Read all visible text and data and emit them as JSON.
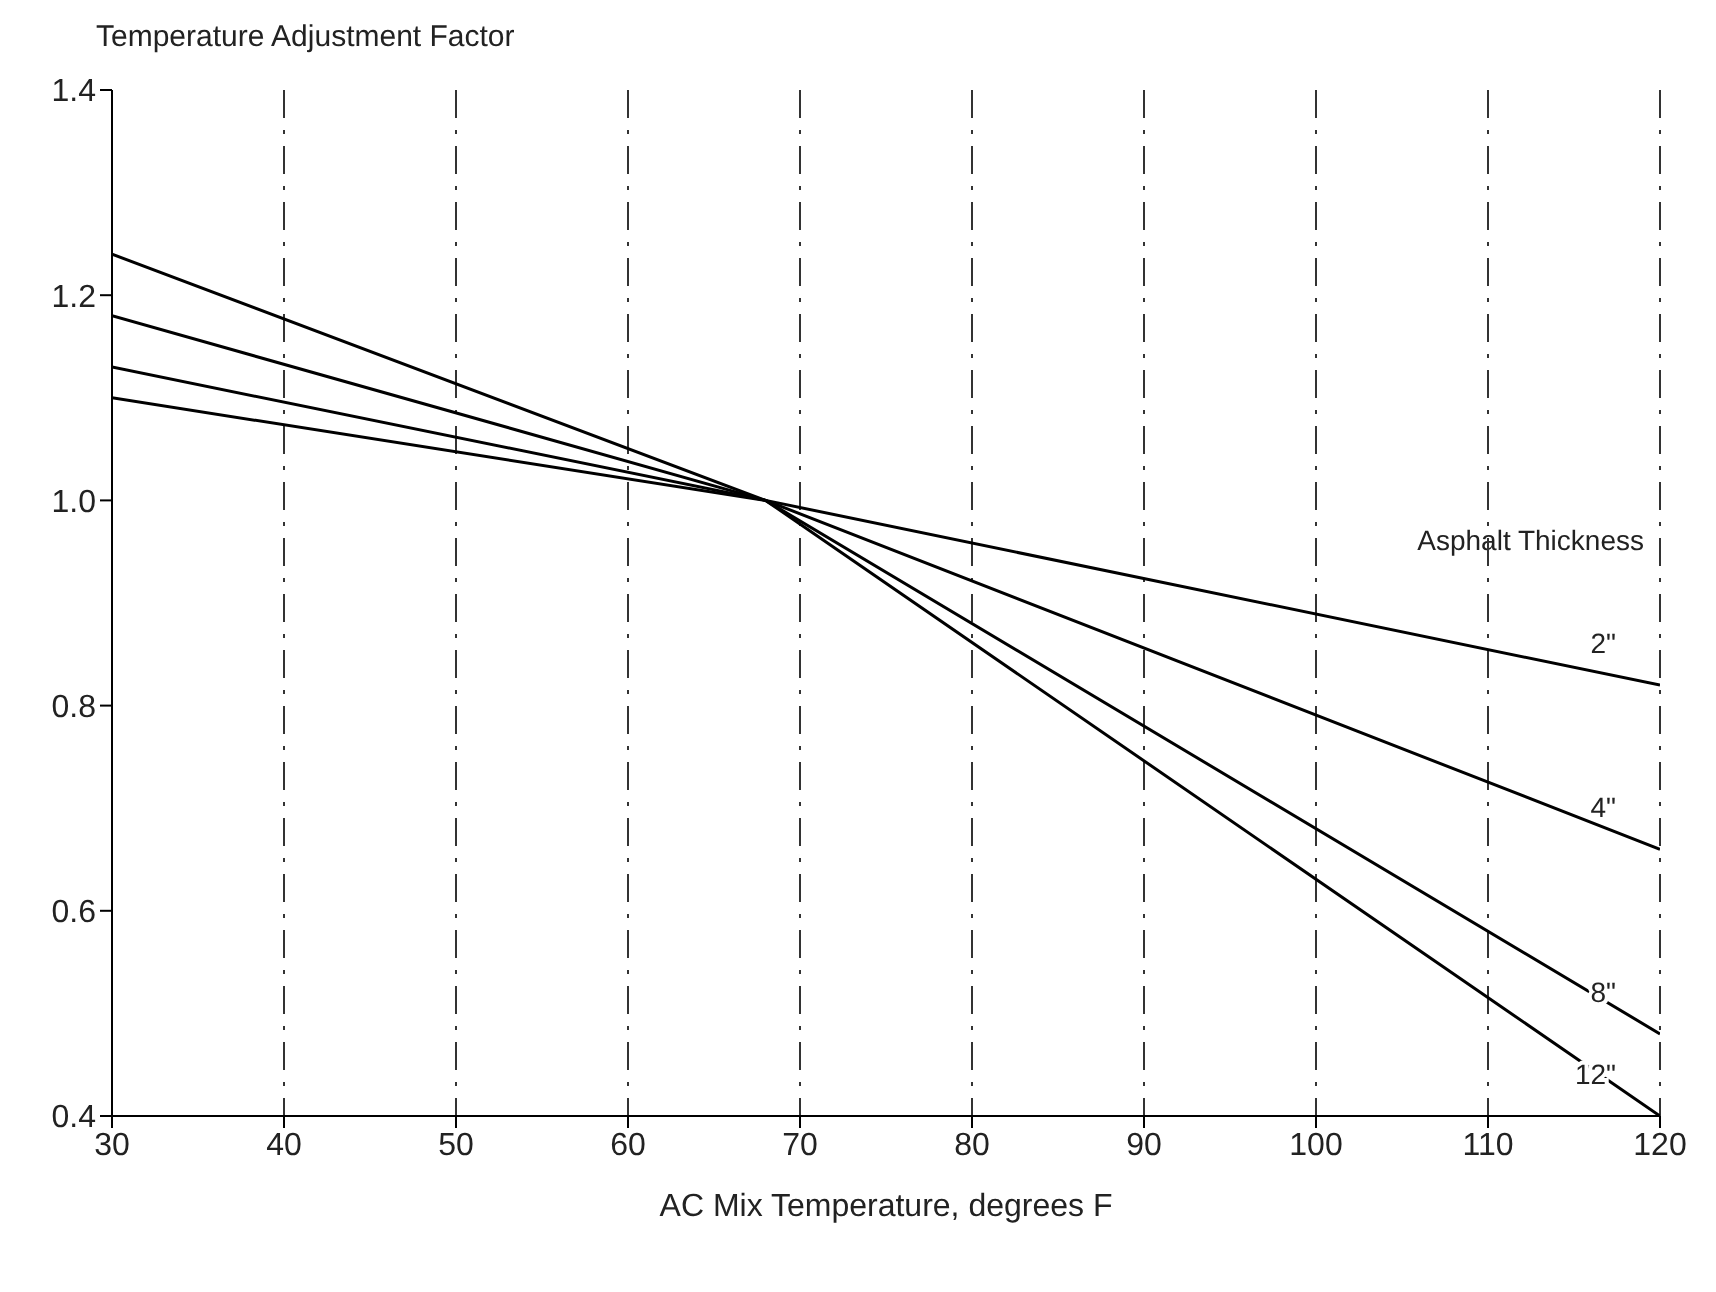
{
  "chart_data": {
    "type": "line",
    "ylabel": "Temperature Adjustment Factor",
    "xlabel": "AC Mix Temperature, degrees F",
    "legend_title": "Asphalt Thickness",
    "x": [
      30,
      68,
      120
    ],
    "series": [
      {
        "name": "2\"",
        "color": "#000000",
        "values": [
          1.1,
          1.0,
          0.82
        ]
      },
      {
        "name": "4\"",
        "color": "#000000",
        "values": [
          1.13,
          1.0,
          0.66
        ]
      },
      {
        "name": "8\"",
        "color": "#000000",
        "values": [
          1.18,
          1.0,
          0.48
        ]
      },
      {
        "name": "12\"",
        "color": "#000000",
        "values": [
          1.24,
          1.0,
          0.4
        ]
      }
    ],
    "xlim": [
      30,
      120
    ],
    "xticks": [
      30,
      40,
      50,
      60,
      70,
      80,
      90,
      100,
      110,
      120
    ],
    "ylim": [
      0.4,
      1.4
    ],
    "yticks": [
      0.4,
      0.6,
      0.8,
      {
        "value": 1,
        "label": "1.0"
      },
      1.2,
      1.4
    ],
    "grid": "x",
    "legend": false,
    "marker": "none",
    "line_style": "solid"
  }
}
